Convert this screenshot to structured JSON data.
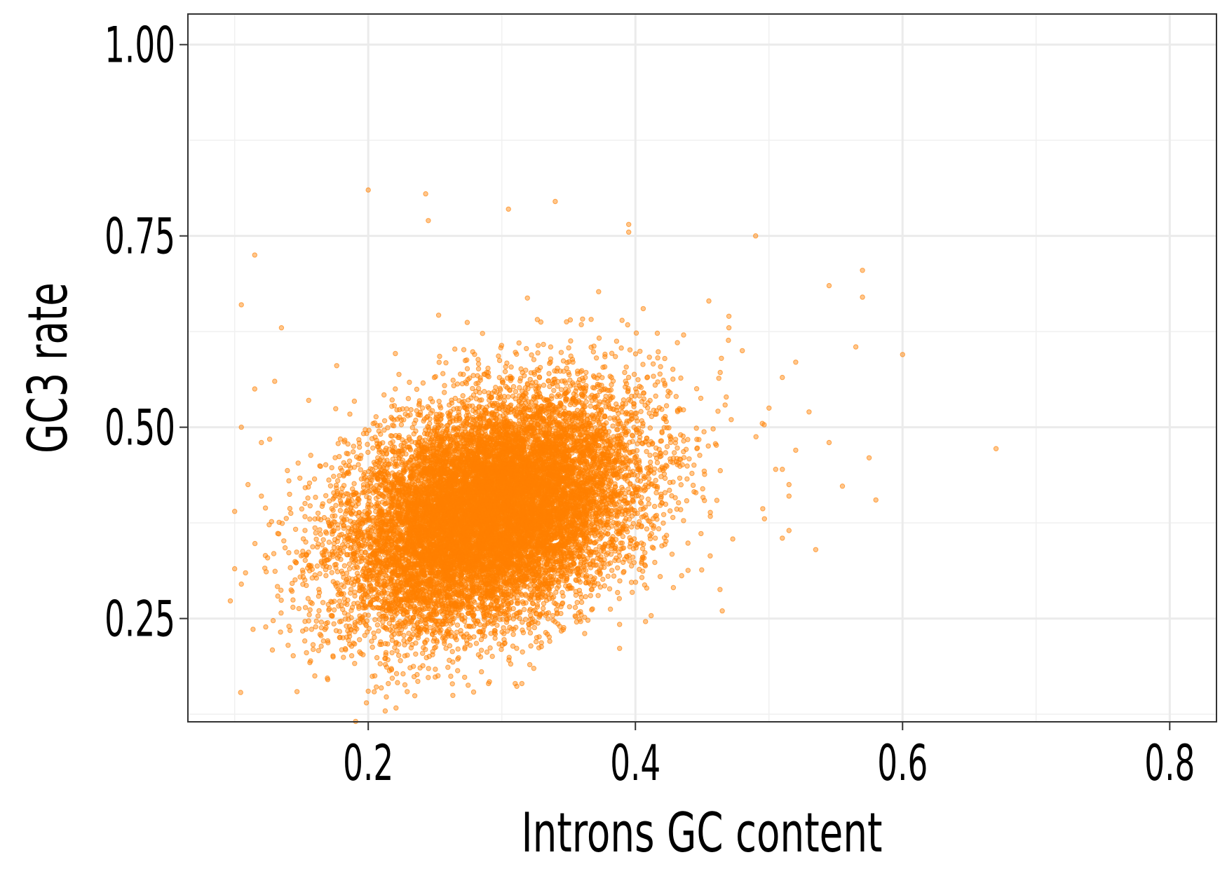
{
  "chart_data": {
    "type": "scatter",
    "title": "",
    "xlabel": "Introns GC content",
    "ylabel": "GC3 rate",
    "xlim": [
      0.065,
      0.835
    ],
    "ylim": [
      0.115,
      1.04
    ],
    "x_ticks": [
      0.2,
      0.4,
      0.6,
      0.8
    ],
    "x_tick_labels": [
      "0.2",
      "0.4",
      "0.6",
      "0.8"
    ],
    "y_ticks": [
      0.25,
      0.5,
      0.75,
      1.0
    ],
    "y_tick_labels": [
      "0.25",
      "0.50",
      "0.75",
      "1.00"
    ],
    "grid": true,
    "legend": "none",
    "point_color": "#FF8000",
    "point_opacity": 0.45,
    "dense_cluster": {
      "approx_point_count": 14000,
      "center": [
        0.29,
        0.39
      ],
      "spread": [
        0.055,
        0.075
      ],
      "correlation": 0.35
    },
    "points": [
      [
        0.2,
        0.81
      ],
      [
        0.243,
        0.805
      ],
      [
        0.245,
        0.77
      ],
      [
        0.305,
        0.785
      ],
      [
        0.34,
        0.795
      ],
      [
        0.395,
        0.765
      ],
      [
        0.395,
        0.755
      ],
      [
        0.49,
        0.75
      ],
      [
        0.115,
        0.725
      ],
      [
        0.57,
        0.705
      ],
      [
        0.545,
        0.685
      ],
      [
        0.57,
        0.67
      ],
      [
        0.105,
        0.66
      ],
      [
        0.565,
        0.605
      ],
      [
        0.6,
        0.595
      ],
      [
        0.52,
        0.585
      ],
      [
        0.51,
        0.565
      ],
      [
        0.53,
        0.52
      ],
      [
        0.545,
        0.48
      ],
      [
        0.67,
        0.472
      ],
      [
        0.575,
        0.46
      ],
      [
        0.52,
        0.47
      ],
      [
        0.505,
        0.445
      ],
      [
        0.51,
        0.445
      ],
      [
        0.515,
        0.425
      ],
      [
        0.555,
        0.423
      ],
      [
        0.515,
        0.41
      ],
      [
        0.58,
        0.405
      ],
      [
        0.51,
        0.355
      ],
      [
        0.515,
        0.365
      ],
      [
        0.535,
        0.34
      ],
      [
        0.465,
        0.26
      ],
      [
        0.1,
        0.39
      ],
      [
        0.1,
        0.315
      ],
      [
        0.105,
        0.295
      ],
      [
        0.11,
        0.425
      ],
      [
        0.105,
        0.5
      ],
      [
        0.12,
        0.41
      ],
      [
        0.135,
        0.63
      ],
      [
        0.14,
        0.215
      ],
      [
        0.16,
        0.175
      ],
      [
        0.2,
        0.155
      ],
      [
        0.29,
        0.165
      ],
      [
        0.315,
        0.165
      ],
      [
        0.31,
        0.165
      ],
      [
        0.215,
        0.165
      ],
      [
        0.495,
        0.505
      ],
      [
        0.5,
        0.525
      ],
      [
        0.48,
        0.6
      ],
      [
        0.47,
        0.645
      ],
      [
        0.47,
        0.63
      ],
      [
        0.455,
        0.665
      ],
      [
        0.13,
        0.56
      ],
      [
        0.12,
        0.48
      ],
      [
        0.115,
        0.55
      ]
    ]
  }
}
